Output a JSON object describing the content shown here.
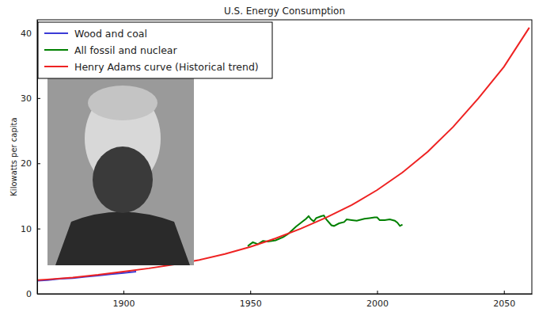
{
  "chart_data": {
    "type": "line",
    "title": "U.S. Energy Consumption",
    "y_label": "Kilowatts per capita",
    "xlim": [
      1866,
      2061
    ],
    "ylim": [
      0,
      42
    ],
    "xticks": [
      1900,
      1950,
      2000,
      2050
    ],
    "yticks": [
      0,
      10,
      20,
      30,
      40
    ],
    "grid": false,
    "legend": "upper left",
    "series": [
      {
        "name": "Wood and coal",
        "color": "#3b3bd6",
        "x": [
          1866,
          1870,
          1875,
          1880,
          1885,
          1890,
          1895,
          1900,
          1905
        ],
        "values": [
          2.0,
          2.1,
          2.3,
          2.4,
          2.6,
          2.8,
          3.0,
          3.2,
          3.4
        ]
      },
      {
        "name": "All fossil and nuclear",
        "color": "#008000",
        "x": [
          1949,
          1950,
          1951,
          1953,
          1955,
          1957,
          1960,
          1963,
          1965,
          1968,
          1970,
          1972,
          1973,
          1974,
          1975,
          1976,
          1978,
          1979,
          1980,
          1982,
          1983,
          1985,
          1987,
          1988,
          1990,
          1992,
          1995,
          1997,
          1999,
          2000,
          2001,
          2003,
          2005,
          2007,
          2008,
          2009,
          2010
        ],
        "values": [
          7.3,
          7.6,
          7.9,
          7.6,
          8.1,
          8.0,
          8.2,
          8.7,
          9.2,
          10.3,
          10.9,
          11.5,
          11.9,
          11.4,
          11.1,
          11.6,
          11.9,
          12.0,
          11.4,
          10.5,
          10.4,
          10.8,
          11.0,
          11.4,
          11.3,
          11.2,
          11.5,
          11.6,
          11.7,
          11.7,
          11.3,
          11.3,
          11.4,
          11.2,
          10.9,
          10.4,
          10.6
        ]
      },
      {
        "name": "Henry Adams curve (Historical trend)",
        "color": "#ee2222",
        "x": [
          1866,
          1870,
          1880,
          1890,
          1900,
          1910,
          1920,
          1930,
          1940,
          1950,
          1960,
          1970,
          1980,
          1990,
          2000,
          2010,
          2020,
          2030,
          2040,
          2050,
          2060
        ],
        "values": [
          2.1,
          2.2,
          2.5,
          2.9,
          3.4,
          3.9,
          4.5,
          5.2,
          6.1,
          7.2,
          8.5,
          10.0,
          11.7,
          13.6,
          15.9,
          18.6,
          21.8,
          25.6,
          30.0,
          34.8,
          40.8
        ]
      }
    ]
  }
}
